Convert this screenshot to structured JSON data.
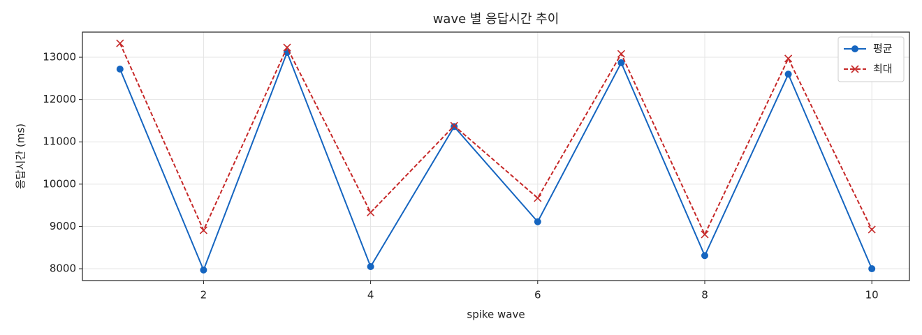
{
  "chart_data": {
    "type": "line",
    "title": "wave 별 응답시간 추이",
    "xlabel": "spike wave",
    "ylabel": "응답시간 (ms)",
    "x": [
      1,
      2,
      3,
      4,
      5,
      6,
      7,
      8,
      9,
      10
    ],
    "series": [
      {
        "name": "평균",
        "color": "#1565c0",
        "marker": "circle",
        "linestyle": "solid",
        "values": [
          12720,
          7970,
          13115,
          8050,
          11360,
          9110,
          12870,
          8310,
          12600,
          8000
        ]
      },
      {
        "name": "최대",
        "color": "#c62828",
        "marker": "x",
        "linestyle": "dashed",
        "values": [
          13330,
          8910,
          13230,
          9330,
          11380,
          9670,
          13080,
          8810,
          12970,
          8925
        ]
      }
    ],
    "xlim": [
      0.55,
      10.45
    ],
    "xticks": [
      2,
      4,
      6,
      8,
      10
    ],
    "ylim": [
      7720,
      13595
    ],
    "yticks": [
      8000,
      9000,
      10000,
      11000,
      12000,
      13000
    ],
    "grid": true,
    "legend": "upper-right"
  }
}
